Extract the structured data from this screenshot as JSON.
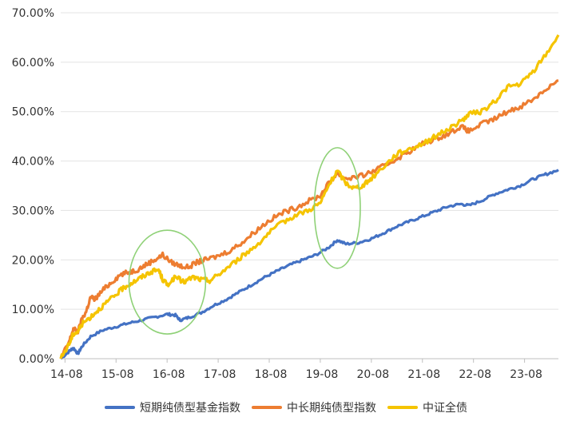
{
  "chart_data": {
    "type": "line",
    "title": "",
    "xlabel": "",
    "ylabel": "",
    "x_ticks": [
      "14-08",
      "15-08",
      "16-08",
      "17-08",
      "18-08",
      "19-08",
      "20-08",
      "21-08",
      "22-08",
      "23-08"
    ],
    "y_ticks": [
      "0.00%",
      "10.00%",
      "20.00%",
      "30.00%",
      "40.00%",
      "50.00%",
      "60.00%",
      "70.00%"
    ],
    "xlim": [
      2014.583,
      2024.33
    ],
    "ylim": [
      0,
      70
    ],
    "grid": "horizontal",
    "legend_position": "bottom",
    "series": [
      {
        "name": "短期纯债型基金指数",
        "color": "#4472c4",
        "points": [
          [
            2014.583,
            0.0
          ],
          [
            2014.75,
            1.5
          ],
          [
            2014.83,
            2.2
          ],
          [
            2014.92,
            1.0
          ],
          [
            2015.0,
            2.5
          ],
          [
            2015.17,
            4.5
          ],
          [
            2015.42,
            5.8
          ],
          [
            2015.67,
            6.5
          ],
          [
            2015.92,
            7.2
          ],
          [
            2016.17,
            7.8
          ],
          [
            2016.42,
            8.4
          ],
          [
            2016.67,
            9.0
          ],
          [
            2016.83,
            8.8
          ],
          [
            2016.92,
            7.8
          ],
          [
            2017.08,
            8.3
          ],
          [
            2017.33,
            9.3
          ],
          [
            2017.58,
            10.8
          ],
          [
            2017.83,
            12.0
          ],
          [
            2018.08,
            13.5
          ],
          [
            2018.33,
            15.0
          ],
          [
            2018.58,
            16.5
          ],
          [
            2018.83,
            17.8
          ],
          [
            2019.08,
            19.0
          ],
          [
            2019.33,
            20.0
          ],
          [
            2019.58,
            21.0
          ],
          [
            2019.83,
            22.5
          ],
          [
            2020.0,
            24.0
          ],
          [
            2020.17,
            23.2
          ],
          [
            2020.42,
            23.5
          ],
          [
            2020.67,
            24.3
          ],
          [
            2020.92,
            25.5
          ],
          [
            2021.17,
            26.8
          ],
          [
            2021.42,
            27.8
          ],
          [
            2021.67,
            28.8
          ],
          [
            2021.92,
            29.8
          ],
          [
            2022.17,
            30.8
          ],
          [
            2022.42,
            31.3
          ],
          [
            2022.58,
            31.0
          ],
          [
            2022.83,
            32.0
          ],
          [
            2023.08,
            33.3
          ],
          [
            2023.33,
            34.2
          ],
          [
            2023.58,
            35.0
          ],
          [
            2023.83,
            36.3
          ],
          [
            2024.08,
            37.3
          ],
          [
            2024.33,
            38.2
          ]
        ]
      },
      {
        "name": "中长期纯债型指数",
        "color": "#ed7d31",
        "points": [
          [
            2014.583,
            0.0
          ],
          [
            2014.75,
            3.5
          ],
          [
            2014.83,
            6.0
          ],
          [
            2014.92,
            5.5
          ],
          [
            2015.0,
            8.0
          ],
          [
            2015.08,
            9.5
          ],
          [
            2015.17,
            12.5
          ],
          [
            2015.25,
            12.0
          ],
          [
            2015.42,
            14.0
          ],
          [
            2015.58,
            15.5
          ],
          [
            2015.75,
            17.0
          ],
          [
            2015.92,
            17.5
          ],
          [
            2016.08,
            18.0
          ],
          [
            2016.25,
            19.0
          ],
          [
            2016.42,
            20.0
          ],
          [
            2016.58,
            21.0
          ],
          [
            2016.75,
            19.5
          ],
          [
            2016.92,
            18.8
          ],
          [
            2017.08,
            18.5
          ],
          [
            2017.25,
            19.5
          ],
          [
            2017.42,
            20.0
          ],
          [
            2017.67,
            20.8
          ],
          [
            2017.92,
            22.0
          ],
          [
            2018.17,
            23.8
          ],
          [
            2018.42,
            26.0
          ],
          [
            2018.67,
            28.0
          ],
          [
            2018.92,
            29.5
          ],
          [
            2019.17,
            30.5
          ],
          [
            2019.42,
            31.8
          ],
          [
            2019.67,
            33.0
          ],
          [
            2019.83,
            35.5
          ],
          [
            2020.0,
            37.5
          ],
          [
            2020.17,
            36.5
          ],
          [
            2020.42,
            36.8
          ],
          [
            2020.67,
            37.8
          ],
          [
            2020.92,
            39.0
          ],
          [
            2021.17,
            40.5
          ],
          [
            2021.42,
            42.0
          ],
          [
            2021.67,
            43.5
          ],
          [
            2021.92,
            44.5
          ],
          [
            2022.17,
            45.5
          ],
          [
            2022.42,
            47.0
          ],
          [
            2022.58,
            46.0
          ],
          [
            2022.83,
            47.5
          ],
          [
            2023.08,
            48.5
          ],
          [
            2023.33,
            50.0
          ],
          [
            2023.58,
            51.0
          ],
          [
            2023.83,
            52.5
          ],
          [
            2024.08,
            54.5
          ],
          [
            2024.33,
            56.3
          ]
        ]
      },
      {
        "name": "中证全债",
        "color": "#f5c400",
        "points": [
          [
            2014.583,
            0.0
          ],
          [
            2014.75,
            3.0
          ],
          [
            2014.83,
            5.0
          ],
          [
            2014.92,
            5.5
          ],
          [
            2015.0,
            7.0
          ],
          [
            2015.17,
            8.5
          ],
          [
            2015.33,
            10.0
          ],
          [
            2015.5,
            11.5
          ],
          [
            2015.67,
            13.0
          ],
          [
            2015.83,
            14.5
          ],
          [
            2016.0,
            15.5
          ],
          [
            2016.17,
            16.5
          ],
          [
            2016.33,
            17.5
          ],
          [
            2016.5,
            18.0
          ],
          [
            2016.58,
            16.0
          ],
          [
            2016.67,
            15.0
          ],
          [
            2016.83,
            16.5
          ],
          [
            2017.0,
            15.5
          ],
          [
            2017.17,
            16.5
          ],
          [
            2017.33,
            16.0
          ],
          [
            2017.5,
            15.8
          ],
          [
            2017.67,
            17.0
          ],
          [
            2017.92,
            19.0
          ],
          [
            2018.17,
            21.0
          ],
          [
            2018.42,
            23.0
          ],
          [
            2018.67,
            25.5
          ],
          [
            2018.92,
            27.5
          ],
          [
            2019.17,
            29.0
          ],
          [
            2019.42,
            30.0
          ],
          [
            2019.67,
            31.5
          ],
          [
            2019.83,
            35.0
          ],
          [
            2020.0,
            38.0
          ],
          [
            2020.17,
            35.5
          ],
          [
            2020.33,
            34.5
          ],
          [
            2020.5,
            35.0
          ],
          [
            2020.67,
            36.5
          ],
          [
            2020.92,
            39.0
          ],
          [
            2021.17,
            41.5
          ],
          [
            2021.42,
            42.5
          ],
          [
            2021.67,
            43.5
          ],
          [
            2021.92,
            45.0
          ],
          [
            2022.17,
            46.5
          ],
          [
            2022.42,
            48.0
          ],
          [
            2022.58,
            49.5
          ],
          [
            2022.83,
            50.0
          ],
          [
            2023.08,
            52.0
          ],
          [
            2023.33,
            55.0
          ],
          [
            2023.58,
            55.5
          ],
          [
            2023.83,
            58.0
          ],
          [
            2024.08,
            61.5
          ],
          [
            2024.33,
            65.5
          ]
        ]
      }
    ],
    "annotations": [
      {
        "shape": "ellipse",
        "color": "#8fd177",
        "center": [
          2016.67,
          15.5
        ],
        "radii": [
          0.75,
          10.5
        ]
      },
      {
        "shape": "ellipse",
        "color": "#8fd177",
        "center": [
          2020.0,
          30.5
        ],
        "radii": [
          0.45,
          12.2
        ]
      }
    ]
  }
}
